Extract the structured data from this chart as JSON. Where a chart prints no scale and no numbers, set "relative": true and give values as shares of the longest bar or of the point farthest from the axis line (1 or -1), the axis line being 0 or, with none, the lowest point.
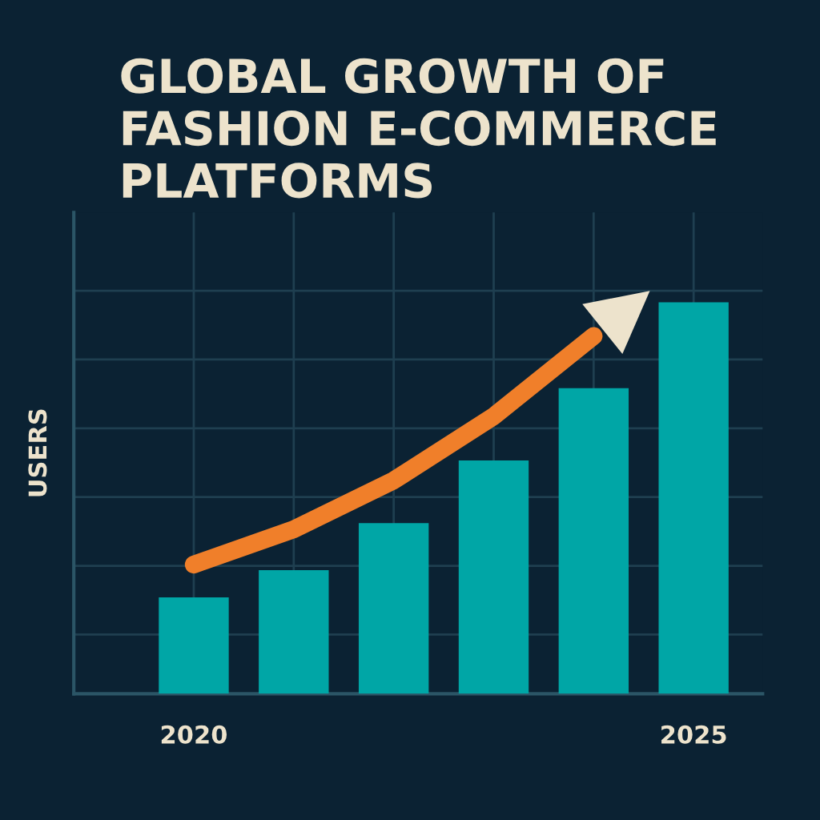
{
  "chart_data": {
    "type": "bar",
    "title": "GLOBAL GROWTH OF FASHION E-COMMERCE PLATFORMS",
    "ylabel": "USERS",
    "categories": [
      "2020",
      null,
      null,
      null,
      null,
      "2025"
    ],
    "series": [
      {
        "color": "#00a6a6",
        "values": [
          0.246,
          0.316,
          0.436,
          0.596,
          0.781,
          1.0
        ]
      },
      {
        "type": "line",
        "color": "#f07f2a",
        "values": [
          0.33,
          0.42,
          0.545,
          0.709,
          0.914,
          null
        ]
      }
    ],
    "relative": true,
    "grid": true,
    "tick_labels": "x"
  }
}
